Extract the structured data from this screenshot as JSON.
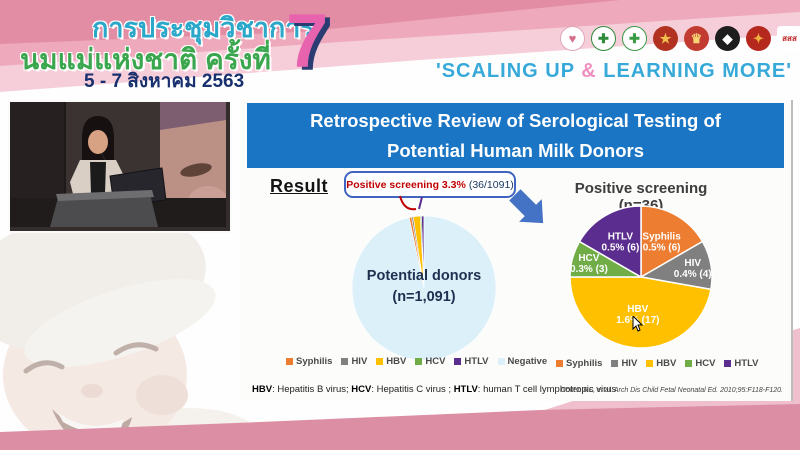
{
  "header": {
    "title_line1": "การประชุมวิชาการ",
    "title_line2": "นมแม่แห่งชาติ ครั้งที่",
    "date_line": "5 - 7 สิงหาคม 2563",
    "edition_number": "7",
    "tagline_pre": "'SCALING UP ",
    "tagline_amp": "&",
    "tagline_post": " LEARNING MORE'",
    "colors": {
      "title1": "#2aa7c9",
      "title2": "#3aa64e",
      "date": "#18316e",
      "seven": "#e763ae",
      "tagline": "#36a9d9",
      "ampersand": "#ef8fc0"
    },
    "logos": [
      {
        "name": "breastfeeding-foundation-logo",
        "glyph": "♥",
        "bg": "#ffffff",
        "fg": "#d4708e",
        "border": "#e0a8ba"
      },
      {
        "name": "medical-council-logo",
        "glyph": "✚",
        "bg": "#ffffff",
        "fg": "#2e8b3a",
        "border": "#2e8b3a"
      },
      {
        "name": "health-department-logo",
        "glyph": "✚",
        "bg": "#ffffff",
        "fg": "#3a9a46",
        "border": "#3a9a46"
      },
      {
        "name": "royal-college-logo",
        "glyph": "★",
        "bg": "#b23222",
        "fg": "#f2c14e"
      },
      {
        "name": "royal-institute-crest-logo",
        "glyph": "♛",
        "bg": "#c23b30",
        "fg": "#f7d574"
      },
      {
        "name": "university-seal-logo",
        "glyph": "◆",
        "bg": "#1d1d1d",
        "fg": "#ffffff"
      },
      {
        "name": "medical-society-logo",
        "glyph": "✦",
        "bg": "#b5281e",
        "fg": "#f0b040"
      },
      {
        "name": "thai-health-sss-logo",
        "glyph": "สสส",
        "bg": "#ffffff",
        "fg": "#c0282a",
        "text_logo": true
      }
    ]
  },
  "slide": {
    "title": "Retrospective Review of Serological Testing of Potential Human Milk Donors",
    "title_bar_color": "#1b75c5",
    "result_label": "Result",
    "callout": {
      "highlight": "Positive screening 3.3%",
      "detail": "(36/1091)",
      "highlight_color": "#c00000",
      "detail_color": "#17375e",
      "border_color": "#4064c0"
    },
    "arrow_color": "#4472c4",
    "footnote": {
      "b1": "HBV",
      "t1": ": Hepatitis B virus; ",
      "b2": "HCV",
      "t2": ": Hepatitis C virus ; ",
      "b3": "HTLV",
      "t3": ": human T cell lymphotropic virus"
    },
    "citation": "Cohen RS, et al. Arch Dis Child Fetal Neonatal Ed. 2010;95:F118-F120."
  },
  "chart_data": [
    {
      "type": "pie",
      "name": "potential-donors-pie",
      "title": "Potential donors",
      "subtitle": "(n=1,091)",
      "total": 1091,
      "start_from_top_deg": -11.9,
      "separator_width": 0.6,
      "labels_shown": false,
      "legend_position": "bottom",
      "slices": [
        {
          "label": "Syphilis",
          "value": 6,
          "color": "#ed7d31"
        },
        {
          "label": "HIV",
          "value": 4,
          "color": "#808080"
        },
        {
          "label": "HBV",
          "value": 17,
          "color": "#ffc000"
        },
        {
          "label": "HCV",
          "value": 3,
          "color": "#70ad47"
        },
        {
          "label": "HTLV",
          "value": 6,
          "color": "#5b2d8e"
        },
        {
          "label": "Negative",
          "value": 1055,
          "color": "#dcf0fa"
        }
      ]
    },
    {
      "type": "pie",
      "name": "positive-screening-pie",
      "title": "Positive screening (n=36)",
      "total": 36,
      "start_from_top_deg": 0,
      "separator_width": 1.5,
      "labels_shown": true,
      "legend_position": "bottom",
      "slices": [
        {
          "label": "Syphilis",
          "line2": "0.5% (6)",
          "value": 6,
          "color": "#ed7d31",
          "label_r": 0.58
        },
        {
          "label": "HIV",
          "line2": "0.4% (4)",
          "value": 4,
          "color": "#808080",
          "label_r": 0.74
        },
        {
          "label": "HBV",
          "line2": "1.6% (17)",
          "value": 17,
          "color": "#ffc000",
          "label_r": 0.52
        },
        {
          "label": "HCV",
          "line2": "0.3% (3)",
          "value": 3,
          "color": "#70ad47",
          "label_r": 0.76
        },
        {
          "label": "HTLV",
          "line2": "0.5% (6)",
          "value": 6,
          "color": "#5b2d8e",
          "label_r": 0.58
        }
      ]
    }
  ]
}
